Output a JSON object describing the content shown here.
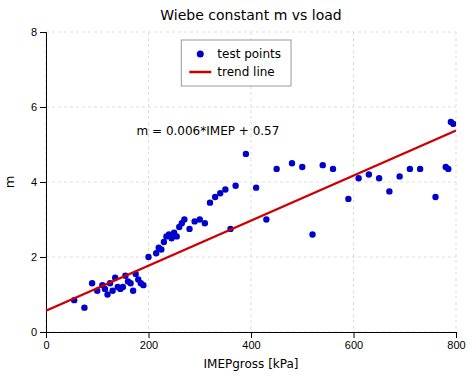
{
  "chart_data": {
    "type": "scatter",
    "title": "Wiebe constant m vs load",
    "xlabel": "IMEPgross [kPa]",
    "ylabel": "m",
    "xlim": [
      0,
      800
    ],
    "ylim": [
      0,
      8
    ],
    "xticks": [
      0,
      200,
      400,
      600,
      800
    ],
    "yticks": [
      0,
      2,
      4,
      6,
      8
    ],
    "grid": true,
    "legend": "top",
    "annotations": [
      "m = 0.006*IMEP + 0.57"
    ],
    "series": [
      {
        "name": "test points",
        "type": "scatter",
        "color": "#0000CC",
        "marker": "circle",
        "x": [
          55,
          75,
          90,
          100,
          110,
          115,
          120,
          125,
          130,
          135,
          140,
          145,
          150,
          155,
          160,
          165,
          170,
          175,
          180,
          185,
          190,
          200,
          215,
          220,
          225,
          230,
          235,
          240,
          245,
          250,
          255,
          260,
          265,
          270,
          280,
          290,
          300,
          310,
          320,
          330,
          340,
          350,
          360,
          370,
          390,
          410,
          430,
          450,
          480,
          500,
          520,
          540,
          560,
          590,
          610,
          630,
          650,
          670,
          690,
          710,
          730,
          760,
          780,
          785,
          790,
          795
        ],
        "values": [
          0.85,
          0.65,
          1.3,
          1.1,
          1.25,
          1.15,
          1.0,
          1.3,
          1.1,
          1.45,
          1.2,
          1.15,
          1.2,
          1.5,
          1.35,
          1.3,
          1.1,
          1.55,
          1.4,
          1.3,
          1.25,
          2.0,
          2.1,
          2.25,
          2.2,
          2.4,
          2.55,
          2.6,
          2.5,
          2.65,
          2.55,
          2.8,
          2.9,
          3.0,
          2.75,
          2.95,
          3.0,
          2.9,
          3.45,
          3.6,
          3.7,
          3.8,
          2.75,
          3.9,
          4.75,
          3.85,
          3.0,
          4.35,
          4.5,
          4.4,
          2.6,
          4.45,
          4.35,
          3.55,
          4.1,
          4.2,
          4.1,
          3.75,
          4.15,
          4.35,
          4.35,
          3.6,
          4.4,
          4.35,
          5.6,
          5.55
        ]
      },
      {
        "name": "trend line",
        "type": "line",
        "color": "#CC0000",
        "line_style": "solid",
        "x": [
          0,
          800
        ],
        "values": [
          0.57,
          5.37
        ]
      }
    ]
  }
}
